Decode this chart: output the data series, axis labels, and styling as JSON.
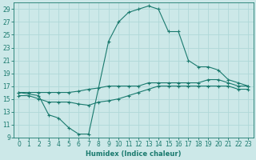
{
  "title": "",
  "xlabel": "Humidex (Indice chaleur)",
  "background_color": "#cce8e8",
  "grid_color": "#b0d8d8",
  "line_color": "#1a7a6e",
  "xlim": [
    -0.5,
    23.5
  ],
  "ylim": [
    9,
    30
  ],
  "xticks": [
    0,
    1,
    2,
    3,
    4,
    5,
    6,
    7,
    8,
    9,
    10,
    11,
    12,
    13,
    14,
    15,
    16,
    17,
    18,
    19,
    20,
    21,
    22,
    23
  ],
  "yticks": [
    9,
    11,
    13,
    15,
    17,
    19,
    21,
    23,
    25,
    27,
    29
  ],
  "line1_x": [
    0,
    1,
    2,
    3,
    4,
    5,
    6,
    7,
    8,
    9,
    10,
    11,
    12,
    13,
    14,
    15,
    16,
    17,
    18,
    19,
    20,
    21,
    22,
    23
  ],
  "line1_y": [
    16,
    16,
    16,
    16,
    16,
    16,
    16.2,
    16.5,
    16.7,
    17,
    17,
    17,
    17,
    17.5,
    17.5,
    17.5,
    17.5,
    17.5,
    17.5,
    18,
    18,
    17.5,
    17,
    17
  ],
  "line2_x": [
    0,
    1,
    2,
    3,
    4,
    5,
    6,
    7,
    8,
    9,
    10,
    11,
    12,
    13,
    14,
    15,
    16,
    17,
    18,
    19,
    20,
    21,
    22,
    23
  ],
  "line2_y": [
    15.5,
    15.5,
    15,
    14.5,
    14.5,
    14.5,
    14.2,
    14,
    14.5,
    14.7,
    15,
    15.5,
    16,
    16.5,
    17,
    17,
    17,
    17,
    17,
    17,
    17,
    17,
    16.5,
    16.5
  ],
  "line3_x": [
    0,
    2,
    3,
    4,
    5,
    6,
    7,
    9,
    10,
    11,
    12,
    13,
    14,
    15,
    16,
    17,
    18,
    19,
    20,
    21,
    22,
    23
  ],
  "line3_y": [
    16,
    15.5,
    12.5,
    12,
    10.5,
    9.5,
    9.5,
    24,
    27,
    28.5,
    29,
    29.5,
    29,
    25.5,
    25.5,
    21,
    20,
    20,
    19.5,
    18,
    17.5,
    17
  ],
  "marker": "+",
  "marker_size": 3,
  "linewidth": 0.8,
  "tick_fontsize": 5.5,
  "xlabel_fontsize": 6
}
